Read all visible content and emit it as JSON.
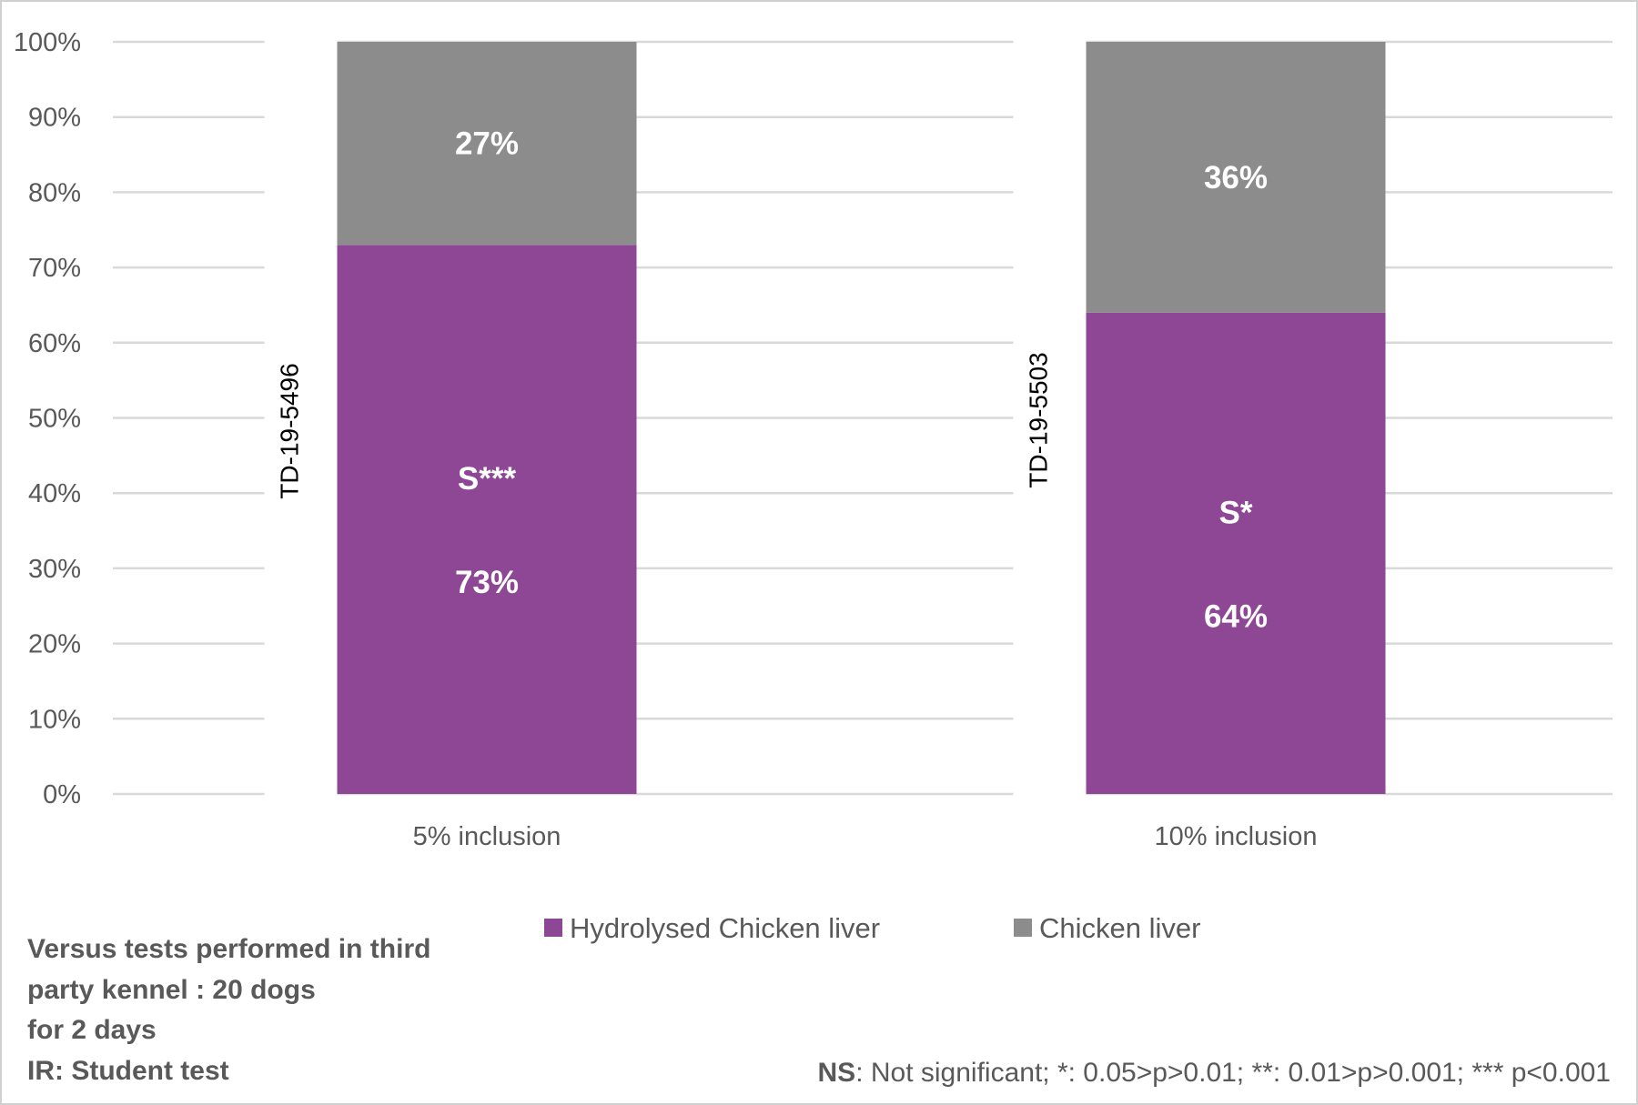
{
  "chart_data": {
    "type": "bar",
    "stacked": true,
    "percent": true,
    "categories": [
      "5% inclusion",
      "10% inclusion"
    ],
    "bar_ids": [
      "TD-19-5496",
      "TD-19-5503"
    ],
    "significance": [
      "S***",
      "S*"
    ],
    "series": [
      {
        "name": "Hydrolysed Chicken liver",
        "values": [
          73,
          64
        ],
        "color": "#8e4795"
      },
      {
        "name": "Chicken liver",
        "values": [
          27,
          36
        ],
        "color": "#8c8c8c"
      }
    ],
    "yticks": [
      "0%",
      "10%",
      "20%",
      "30%",
      "40%",
      "50%",
      "60%",
      "70%",
      "80%",
      "90%",
      "100%"
    ],
    "ylim": [
      0,
      100
    ],
    "grid": true,
    "gridColor": "#d9d9d9",
    "legend_position": "bottom"
  },
  "note": {
    "lines": [
      "Versus tests performed in third",
      "party kennel : 20 dogs",
      "for 2 days",
      "IR: Student test"
    ]
  },
  "significance_note": {
    "key": "NS",
    "text": ": Not significant; *: 0.05>p>0.01; **: 0.01>p>0.001; *** p<0.001"
  }
}
